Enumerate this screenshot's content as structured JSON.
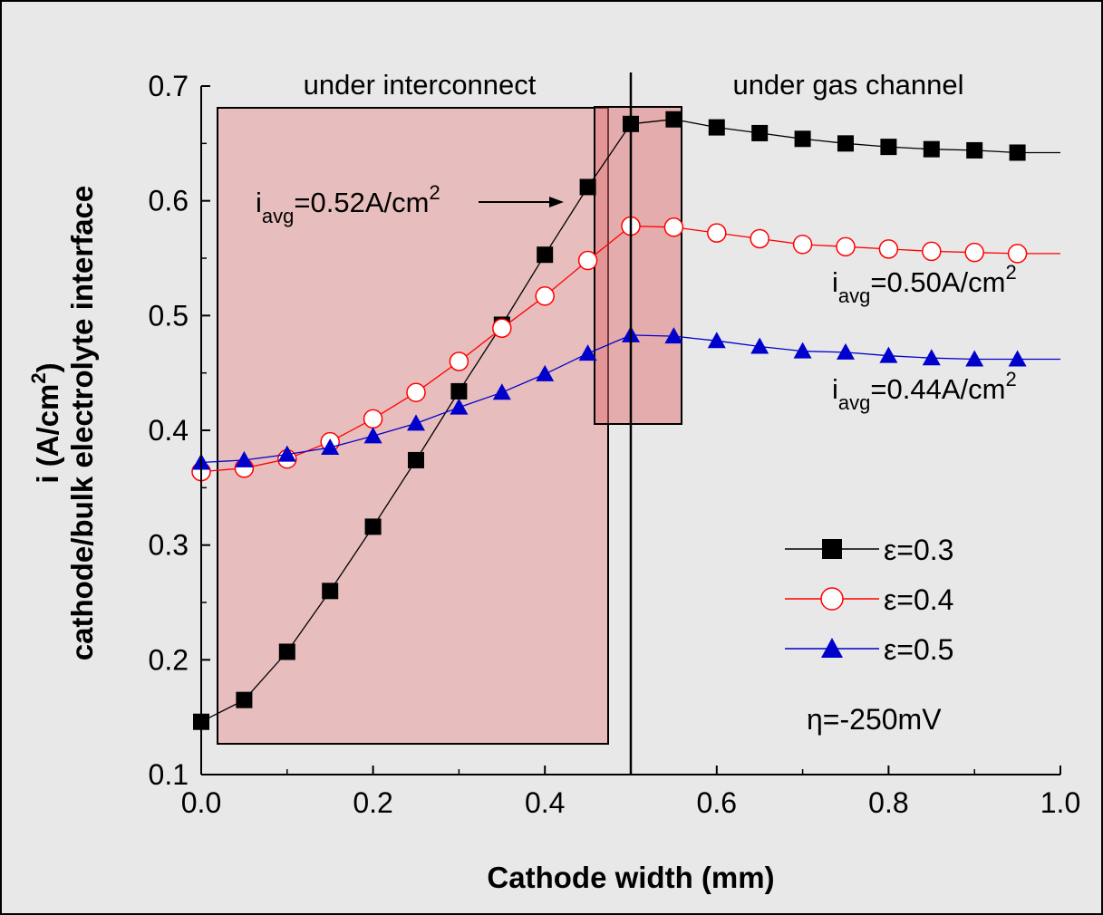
{
  "chart_data": {
    "type": "line",
    "title": "",
    "xlabel": "Cathode width (mm)",
    "ylabel_line1": "i (A/cm",
    "ylabel_sup": "2",
    "ylabel_close": ")",
    "ylabel_line2": "cathode/bulk electrolyte interface",
    "xlim": [
      0.0,
      1.0
    ],
    "ylim": [
      0.1,
      0.7
    ],
    "x_ticks": [
      "0.0",
      "0.2",
      "0.4",
      "0.6",
      "0.8",
      "1.0"
    ],
    "y_ticks": [
      "0.1",
      "0.2",
      "0.3",
      "0.4",
      "0.5",
      "0.6",
      "0.7"
    ],
    "grid": false,
    "legend_position": "bottom-right",
    "series": [
      {
        "name": "ε=0.3",
        "color": "#000000",
        "marker": "filled-square",
        "x": [
          0.0,
          0.05,
          0.1,
          0.15,
          0.2,
          0.25,
          0.3,
          0.35,
          0.4,
          0.45,
          0.5,
          0.55,
          0.6,
          0.65,
          0.7,
          0.75,
          0.8,
          0.85,
          0.9,
          0.95
        ],
        "y": [
          0.146,
          0.165,
          0.207,
          0.26,
          0.316,
          0.374,
          0.434,
          0.492,
          0.553,
          0.612,
          0.667,
          0.671,
          0.664,
          0.659,
          0.654,
          0.65,
          0.647,
          0.645,
          0.644,
          0.642
        ]
      },
      {
        "name": "ε=0.4",
        "color": "#ff0000",
        "marker": "open-circle",
        "x": [
          0.0,
          0.05,
          0.1,
          0.15,
          0.2,
          0.25,
          0.3,
          0.35,
          0.4,
          0.45,
          0.5,
          0.55,
          0.6,
          0.65,
          0.7,
          0.75,
          0.8,
          0.85,
          0.9,
          0.95
        ],
        "y": [
          0.364,
          0.367,
          0.375,
          0.39,
          0.41,
          0.433,
          0.46,
          0.489,
          0.517,
          0.548,
          0.578,
          0.577,
          0.572,
          0.567,
          0.562,
          0.56,
          0.558,
          0.556,
          0.555,
          0.554
        ]
      },
      {
        "name": "ε=0.5",
        "color": "#0000cc",
        "marker": "filled-triangle",
        "x": [
          0.0,
          0.05,
          0.1,
          0.15,
          0.2,
          0.25,
          0.3,
          0.35,
          0.4,
          0.45,
          0.5,
          0.55,
          0.6,
          0.65,
          0.7,
          0.75,
          0.8,
          0.85,
          0.9,
          0.95
        ],
        "y": [
          0.372,
          0.374,
          0.379,
          0.385,
          0.395,
          0.406,
          0.42,
          0.433,
          0.449,
          0.467,
          0.483,
          0.482,
          0.478,
          0.473,
          0.469,
          0.468,
          0.465,
          0.463,
          0.462,
          0.462
        ]
      }
    ],
    "regions": [
      {
        "label": "under interconnect",
        "x_range": [
          0.0,
          0.5
        ]
      },
      {
        "label": "under gas channel",
        "x_range": [
          0.5,
          1.0
        ]
      }
    ],
    "divider_x": 0.5,
    "annotations": [
      {
        "main": "i",
        "sub": "avg",
        "rest": "=0.52A/cm",
        "sup": "2"
      },
      {
        "main": "i",
        "sub": "avg",
        "rest": "=0.50A/cm",
        "sup": "2"
      },
      {
        "main": "i",
        "sub": "avg",
        "rest": "=0.44A/cm",
        "sup": "2"
      }
    ],
    "condition": "η=-250mV",
    "colors": {
      "background": "#e8e8e8",
      "highlight_fill": "#e8a0a0",
      "ink": "#000000"
    }
  }
}
